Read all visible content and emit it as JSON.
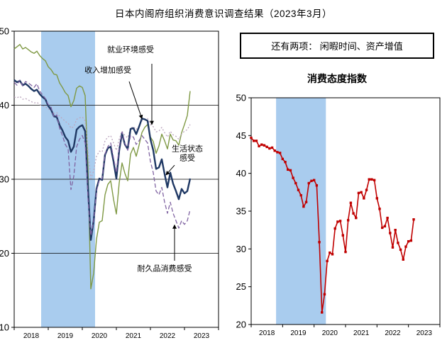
{
  "page": {
    "title": "日本内阁府组织消费意识调查结果（2023年3月）"
  },
  "note_box": {
    "text": "还有两项：  闲暇时间、资产增值"
  },
  "chart_data": [
    {
      "type": "line",
      "panel": "left",
      "title": "",
      "x_period": "monthly, Jan 2018 - Mar 2023",
      "xtick_labels": [
        "2018",
        "2019",
        "2020",
        "2021",
        "2022",
        "2023"
      ],
      "ylim": [
        10,
        50
      ],
      "yticks": [
        10,
        20,
        30,
        40,
        50
      ],
      "gridlines": [
        20,
        30,
        40
      ],
      "recession_band": {
        "from_month": 9.5,
        "to_month": 28.5,
        "color": "#A9CCEE"
      },
      "series": [
        {
          "key": "employment",
          "name": "就业环境感受",
          "color": "#7F9944",
          "style": "solid",
          "width": 1.4,
          "values": [
            47.6,
            47.9,
            48.2,
            47.6,
            47.8,
            47.5,
            47.2,
            47.0,
            47.3,
            46.7,
            46.3,
            46.0,
            45.2,
            44.8,
            44.2,
            44.1,
            43.0,
            42.4,
            41.7,
            41.3,
            39.8,
            40.6,
            42.3,
            42.6,
            42.4,
            41.3,
            31.5,
            15.2,
            17.3,
            21.9,
            24.2,
            24.4,
            27.9,
            29.3,
            29.8,
            27.3,
            25.3,
            29.5,
            32.2,
            30.8,
            29.8,
            33.4,
            34.3,
            33.1,
            34.6,
            36.3,
            37.0,
            37.4,
            35.7,
            35.1,
            33.5,
            34.5,
            36.1,
            35.2,
            34.1,
            36.1,
            35.3,
            35.2,
            34.6,
            36.3,
            37.4,
            38.6,
            41.9
          ]
        },
        {
          "key": "income",
          "name": "收入增加感受",
          "color": "#BCA6BE",
          "style": "dotted",
          "width": 1.3,
          "values": [
            41.1,
            41.0,
            41.2,
            40.8,
            40.9,
            40.7,
            40.5,
            40.3,
            40.4,
            40.1,
            39.9,
            39.8,
            39.5,
            39.3,
            38.9,
            39.0,
            38.5,
            38.2,
            37.8,
            37.6,
            36.9,
            37.1,
            38.1,
            38.3,
            38.4,
            37.9,
            33.8,
            30.1,
            31.1,
            33.1,
            33.8,
            33.7,
            35.2,
            35.7,
            35.9,
            34.9,
            33.9,
            35.4,
            36.5,
            35.9,
            35.6,
            36.9,
            37.1,
            36.7,
            37.2,
            37.9,
            38.1,
            38.2,
            37.4,
            37.1,
            36.4,
            36.5,
            37.0,
            36.3,
            35.7,
            36.5,
            36.0,
            35.8,
            35.4,
            36.1,
            36.5,
            36.7,
            37.4
          ]
        },
        {
          "key": "living",
          "name": "生活状态感受",
          "color": "#1F3864",
          "style": "solid",
          "width": 2.4,
          "values": [
            43.4,
            43.1,
            43.3,
            42.7,
            42.9,
            42.6,
            42.2,
            41.9,
            42.1,
            41.5,
            41.1,
            40.8,
            39.9,
            39.4,
            38.5,
            38.4,
            37.3,
            36.6,
            35.7,
            35.2,
            33.7,
            34.4,
            36.7,
            37.1,
            37.3,
            36.5,
            28.8,
            21.8,
            24.4,
            28.7,
            30.1,
            29.9,
            33.3,
            34.2,
            34.4,
            32.4,
            30.1,
            33.9,
            36.2,
            34.7,
            34.1,
            36.8,
            36.9,
            36.1,
            37.1,
            38.2,
            38.1,
            37.9,
            35.4,
            33.9,
            31.4,
            31.6,
            32.7,
            30.7,
            28.9,
            30.9,
            29.4,
            28.4,
            27.3,
            28.7,
            28.1,
            28.4,
            30.1
          ]
        },
        {
          "key": "durables",
          "name": "耐久品消费感受",
          "color": "#8064A2",
          "style": "dashed",
          "width": 1.3,
          "values": [
            43.1,
            42.7,
            43.4,
            42.6,
            43.2,
            43.0,
            42.7,
            42.4,
            42.9,
            41.9,
            41.4,
            40.9,
            40.1,
            39.7,
            38.4,
            38.7,
            36.9,
            35.9,
            34.7,
            34.1,
            28.6,
            30.4,
            34.4,
            35.4,
            35.9,
            34.9,
            27.4,
            22.4,
            24.4,
            28.4,
            29.9,
            30.1,
            33.4,
            34.4,
            34.9,
            32.9,
            30.9,
            34.4,
            36.4,
            34.9,
            33.9,
            35.9,
            35.7,
            34.7,
            35.2,
            35.9,
            35.4,
            34.9,
            32.4,
            30.9,
            28.4,
            27.9,
            28.9,
            26.9,
            25.4,
            26.9,
            25.4,
            24.4,
            23.4,
            24.4,
            23.9,
            24.4,
            25.9
          ]
        }
      ],
      "annotations": [
        {
          "text": [
            "就业环境感受"
          ],
          "m": 41,
          "v": 47.2,
          "arrow": {
            "m1": 48.5,
            "v1": 45.6,
            "m2": 48.5,
            "v2": 37.4
          }
        },
        {
          "text": [
            "收入增加感受"
          ],
          "m": 33,
          "v": 44.4,
          "arrow": {
            "m1": 40.5,
            "v1": 43.2,
            "m2": 45.0,
            "v2": 38.2
          }
        },
        {
          "text": [
            "生活状态",
            "感受"
          ],
          "m": 61,
          "v": 33.8,
          "arrow": {
            "m1": 56.5,
            "v1": 31.9,
            "m2": 53.5,
            "v2": 30.6
          }
        },
        {
          "text": [
            "耐久品消费感受"
          ],
          "m": 53,
          "v": 17.6,
          "arrow": {
            "m1": 56.5,
            "v1": 19.0,
            "m2": 56.5,
            "v2": 23.8
          }
        }
      ]
    },
    {
      "type": "line",
      "panel": "right",
      "title": "消费态度指数",
      "x_period": "monthly, Jan 2018 - Mar 2023",
      "xtick_labels": [
        "2018",
        "2019",
        "2020",
        "2021",
        "2022",
        "2023"
      ],
      "ylim": [
        20,
        50
      ],
      "yticks": [
        20,
        25,
        30,
        35,
        40,
        45,
        50
      ],
      "gridlines": [],
      "recession_band": {
        "from_month": 9.5,
        "to_month": 28.5,
        "color": "#A9CCEE"
      },
      "series": [
        {
          "key": "consumer-attitude-index",
          "name": "消费态度指数",
          "color": "#C00000",
          "style": "solid",
          "width": 1.6,
          "marker": "square",
          "values": [
            44.7,
            44.3,
            44.3,
            43.6,
            43.8,
            43.7,
            43.5,
            43.3,
            43.4,
            43.0,
            42.8,
            42.7,
            41.9,
            41.5,
            40.5,
            40.4,
            39.4,
            38.7,
            37.8,
            37.1,
            35.6,
            36.2,
            38.7,
            39.0,
            39.1,
            38.4,
            30.9,
            21.6,
            24.0,
            28.4,
            29.5,
            29.3,
            32.7,
            33.6,
            33.7,
            31.8,
            29.6,
            33.8,
            36.1,
            34.7,
            34.1,
            37.4,
            37.5,
            36.7,
            37.8,
            39.2,
            39.2,
            39.1,
            36.7,
            35.3,
            32.8,
            33.0,
            34.1,
            32.1,
            30.2,
            32.5,
            30.8,
            29.9,
            28.6,
            30.3,
            31.0,
            31.1,
            33.9
          ]
        }
      ],
      "annotations": []
    }
  ]
}
